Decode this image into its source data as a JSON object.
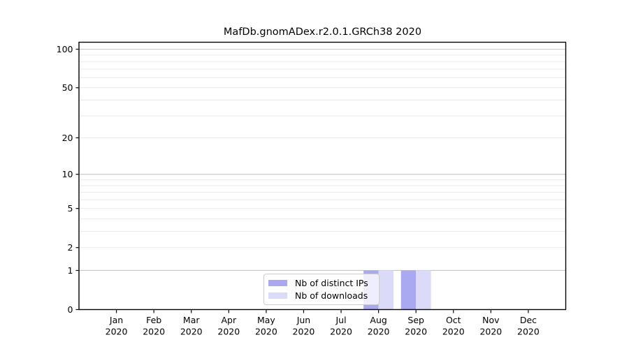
{
  "figure": {
    "title": "MafDb.gnomADex.r2.0.1.GRCh38 2020",
    "background": "#ffffff"
  },
  "chart_data": {
    "type": "bar",
    "title": "MafDb.gnomADex.r2.0.1.GRCh38 2020",
    "categories": [
      "Jan 2020",
      "Feb 2020",
      "Mar 2020",
      "Apr 2020",
      "May 2020",
      "Jun 2020",
      "Jul 2020",
      "Aug 2020",
      "Sep 2020",
      "Oct 2020",
      "Nov 2020",
      "Dec 2020"
    ],
    "series": [
      {
        "name": "Nb of distinct IPs",
        "color": "#a9a9f2",
        "values": [
          0,
          0,
          0,
          0,
          0,
          0,
          0,
          1,
          1,
          0,
          0,
          0
        ]
      },
      {
        "name": "Nb of downloads",
        "color": "#dbdbf9",
        "values": [
          0,
          0,
          0,
          0,
          0,
          0,
          0,
          1,
          1,
          0,
          0,
          0
        ]
      }
    ],
    "xlabel": "",
    "ylabel": "",
    "y_scale": "log1p",
    "ylim": [
      0,
      113.3
    ],
    "y_tick_values": [
      0,
      1,
      2,
      5,
      10,
      20,
      50,
      100
    ],
    "y_major_gridlines": [
      1,
      10,
      100
    ],
    "y_minor_gridlines": [
      2,
      3,
      4,
      5,
      6,
      7,
      8,
      9,
      20,
      30,
      40,
      50,
      60,
      70,
      80,
      90
    ],
    "grid": true,
    "legend_position": "lower center",
    "bar_mode": "grouped",
    "colors": {
      "axis": "#000000",
      "tick_label": "#000000",
      "major_grid": "#c4c4c4",
      "minor_grid": "#e8e8e8",
      "legend_border": "#cccccc",
      "legend_bg": "rgba(255,255,255,0.8)"
    }
  }
}
